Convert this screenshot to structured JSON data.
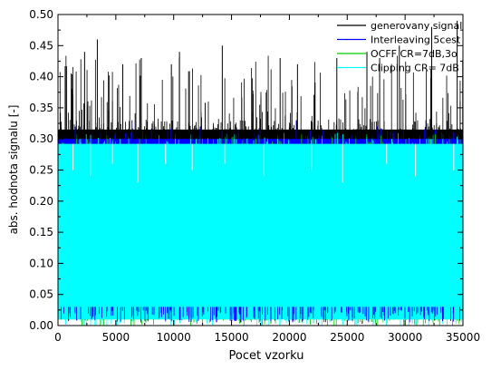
{
  "chart_data": {
    "type": "line",
    "xlabel": "Pocet vzorku",
    "ylabel": "abs. hodnota signalu [-]",
    "xlim": [
      0,
      35000
    ],
    "ylim": [
      0,
      0.5
    ],
    "x_ticks": [
      0,
      5000,
      10000,
      15000,
      20000,
      25000,
      30000,
      35000
    ],
    "x_tick_labels": [
      "0",
      "5000",
      "10000",
      "15000",
      "20000",
      "25000",
      "30000",
      "35000"
    ],
    "y_ticks": [
      0,
      0.05,
      0.1,
      0.15,
      0.2,
      0.25,
      0.3,
      0.35,
      0.4,
      0.45,
      0.5
    ],
    "y_tick_labels": [
      "0.00",
      "0.05",
      "0.10",
      "0.15",
      "0.20",
      "0.25",
      "0.30",
      "0.35",
      "0.40",
      "0.45",
      "0.50"
    ],
    "grid": false,
    "legend_position": "top-right",
    "n_samples": 35000,
    "series": [
      {
        "name": "generovany signal",
        "color": "#000000",
        "fill_band": [
          0.295,
          0.315
        ],
        "peaks": [
          [
            1200,
            0.38
          ],
          [
            2300,
            0.44
          ],
          [
            3400,
            0.46
          ],
          [
            5600,
            0.42
          ],
          [
            7200,
            0.43
          ],
          [
            9800,
            0.42
          ],
          [
            10500,
            0.44
          ],
          [
            14200,
            0.45
          ],
          [
            19200,
            0.43
          ],
          [
            20700,
            0.42
          ],
          [
            24100,
            0.43
          ],
          [
            26700,
            0.44
          ],
          [
            27800,
            0.43
          ],
          [
            29500,
            0.45
          ],
          [
            32300,
            0.48
          ],
          [
            34500,
            0.49
          ]
        ],
        "dips": [
          [
            8200,
            0.01
          ],
          [
            15800,
            0.005
          ],
          [
            26300,
            0.003
          ]
        ]
      },
      {
        "name": "Interleaving 5cest",
        "color": "#0000ff",
        "fill_band": [
          0.02,
          0.3
        ],
        "peaks": [
          [
            1500,
            0.32
          ],
          [
            6400,
            0.33
          ],
          [
            12300,
            0.32
          ],
          [
            20600,
            0.33
          ],
          [
            27600,
            0.32
          ],
          [
            31800,
            0.33
          ]
        ],
        "dips": [
          [
            4300,
            0.22
          ],
          [
            10400,
            0.24
          ],
          [
            16600,
            0.23
          ],
          [
            23100,
            0.25
          ],
          [
            29300,
            0.21
          ],
          [
            33400,
            0.22
          ]
        ]
      },
      {
        "name": "OCFF CR=7dB,3o",
        "color": "#00cc00",
        "fill_band": [
          0.01,
          0.29
        ],
        "peaks": [],
        "dips": [
          [
            7600,
            0.005
          ],
          [
            13100,
            0.005
          ],
          [
            18400,
            0.003
          ]
        ]
      },
      {
        "name": "Clipping CR= 7dB",
        "color": "#00ffff",
        "fill_band": [
          0.01,
          0.292
        ],
        "peaks": [],
        "dips": [
          [
            1300,
            0.25
          ],
          [
            2800,
            0.24
          ],
          [
            4700,
            0.26
          ],
          [
            6900,
            0.23
          ],
          [
            9300,
            0.26
          ],
          [
            11600,
            0.25
          ],
          [
            14400,
            0.26
          ],
          [
            17800,
            0.24
          ],
          [
            21900,
            0.25
          ],
          [
            24600,
            0.23
          ],
          [
            28400,
            0.26
          ],
          [
            30900,
            0.24
          ],
          [
            34200,
            0.25
          ]
        ]
      }
    ]
  }
}
